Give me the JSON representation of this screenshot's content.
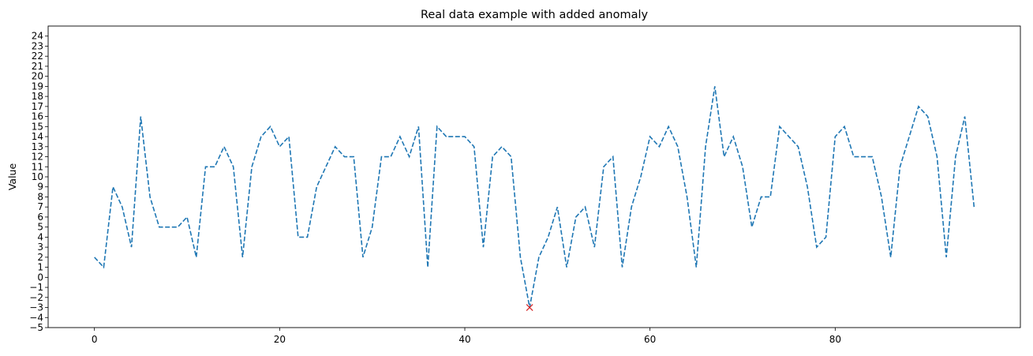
{
  "chart_data": {
    "type": "line",
    "title": "Real data example with added anomaly",
    "xlabel": "",
    "ylabel": "Value",
    "xlim": [
      -5,
      100
    ],
    "ylim": [
      -5,
      25
    ],
    "xticks": [
      0,
      20,
      40,
      60,
      80
    ],
    "yticks": [
      -5,
      -4,
      -3,
      -2,
      -1,
      0,
      1,
      2,
      3,
      4,
      5,
      6,
      7,
      8,
      9,
      10,
      11,
      12,
      13,
      14,
      15,
      16,
      17,
      18,
      19,
      20,
      21,
      22,
      23,
      24
    ],
    "grid": false,
    "series": [
      {
        "style": "dashed",
        "color": "#1f77b4",
        "x": [
          0,
          1,
          2,
          3,
          4,
          5,
          6,
          7,
          8,
          9,
          10,
          11,
          12,
          13,
          14,
          15,
          16,
          17,
          18,
          19,
          20,
          21,
          22,
          23,
          24,
          25,
          26,
          27,
          28,
          29,
          30,
          31,
          32,
          33,
          34,
          35,
          36,
          37,
          38,
          39,
          40,
          41,
          42,
          43,
          44,
          45,
          46,
          47,
          48,
          49,
          50,
          51,
          52,
          53,
          54,
          55,
          56,
          57,
          58,
          59,
          60,
          61,
          62,
          63,
          64,
          65,
          66,
          67,
          68,
          69,
          70,
          71,
          72,
          73,
          74,
          75,
          76,
          77,
          78,
          79,
          80,
          81,
          82,
          83,
          84,
          85,
          86,
          87,
          88,
          89,
          90,
          91,
          92,
          93,
          94,
          95
        ],
        "values": [
          2,
          1,
          9,
          7,
          3,
          16,
          8,
          5,
          5,
          5,
          6,
          2,
          11,
          11,
          13,
          11,
          2,
          11,
          14,
          15,
          13,
          14,
          4,
          4,
          9,
          11,
          13,
          12,
          12,
          2,
          5,
          12,
          12,
          14,
          12,
          15,
          1,
          15,
          14,
          14,
          14,
          13,
          3,
          12,
          13,
          12,
          2,
          -3,
          2,
          4,
          7,
          1,
          6,
          7,
          3,
          11,
          12,
          1,
          7,
          10,
          14,
          13,
          15,
          13,
          8,
          1,
          13,
          19,
          12,
          14,
          11,
          5,
          8,
          8,
          15,
          14,
          13,
          9,
          3,
          4,
          14,
          15,
          12,
          12,
          12,
          8,
          2,
          11,
          14,
          17,
          16,
          12,
          2,
          12,
          16,
          7
        ]
      }
    ],
    "anomalies": [
      {
        "x": 47,
        "y": -3,
        "marker": "x",
        "color": "#d62728"
      }
    ]
  }
}
